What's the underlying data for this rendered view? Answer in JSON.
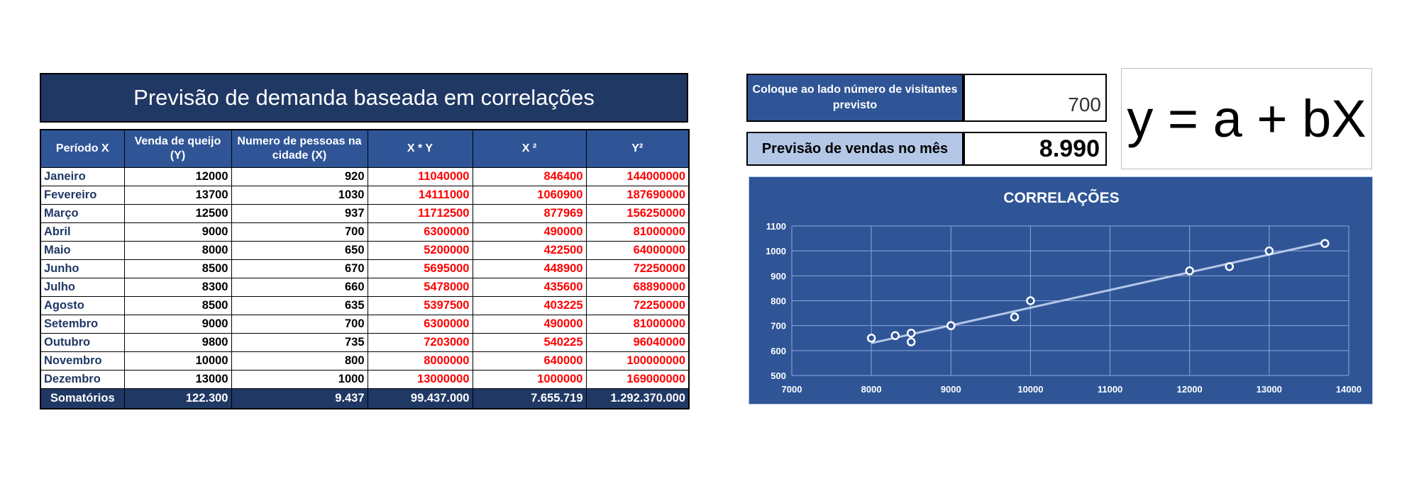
{
  "table": {
    "title": "Previsão de demanda baseada em correlações",
    "headers": [
      "Período X",
      "Venda de queijo (Y)",
      "Numero de pessoas na cidade (X)",
      "X * Y",
      "X ²",
      "Y²"
    ],
    "rows": [
      [
        "Janeiro",
        "12000",
        "920",
        "11040000",
        "846400",
        "144000000"
      ],
      [
        "Fevereiro",
        "13700",
        "1030",
        "14111000",
        "1060900",
        "187690000"
      ],
      [
        "Março",
        "12500",
        "937",
        "11712500",
        "877969",
        "156250000"
      ],
      [
        "Abril",
        "9000",
        "700",
        "6300000",
        "490000",
        "81000000"
      ],
      [
        "Maio",
        "8000",
        "650",
        "5200000",
        "422500",
        "64000000"
      ],
      [
        "Junho",
        "8500",
        "670",
        "5695000",
        "448900",
        "72250000"
      ],
      [
        "Julho",
        "8300",
        "660",
        "5478000",
        "435600",
        "68890000"
      ],
      [
        "Agosto",
        "8500",
        "635",
        "5397500",
        "403225",
        "72250000"
      ],
      [
        "Setembro",
        "9000",
        "700",
        "6300000",
        "490000",
        "81000000"
      ],
      [
        "Outubro",
        "9800",
        "735",
        "7203000",
        "540225",
        "96040000"
      ],
      [
        "Novembro",
        "10000",
        "800",
        "8000000",
        "640000",
        "100000000"
      ],
      [
        "Dezembro",
        "13000",
        "1000",
        "13000000",
        "1000000",
        "169000000"
      ]
    ],
    "totals": [
      "Somatórios",
      "122.300",
      "9.437",
      "99.437.000",
      "7.655.719",
      "1.292.370.000"
    ]
  },
  "input_panel": {
    "label": "Coloque ao lado número de visitantes previsto",
    "value": "700"
  },
  "output_panel": {
    "label": "Previsão de vendas no mês",
    "value": "8.990"
  },
  "formula": "y = a + bX",
  "chart_data": {
    "type": "scatter",
    "title": "CORRELAÇÕES",
    "xlim": [
      7000,
      14000
    ],
    "ylim": [
      500,
      1100
    ],
    "x_ticks": [
      "7000",
      "8000",
      "9000",
      "10000",
      "11000",
      "12000",
      "13000",
      "14000"
    ],
    "y_ticks": [
      "500",
      "600",
      "700",
      "800",
      "900",
      "1000",
      "1100"
    ],
    "grid": true,
    "points": [
      [
        12000,
        920
      ],
      [
        13700,
        1030
      ],
      [
        12500,
        937
      ],
      [
        9000,
        700
      ],
      [
        8000,
        650
      ],
      [
        8500,
        670
      ],
      [
        8300,
        660
      ],
      [
        8500,
        635
      ],
      [
        9000,
        700
      ],
      [
        9800,
        735
      ],
      [
        10000,
        800
      ],
      [
        13000,
        1000
      ]
    ],
    "trendline": [
      [
        8000,
        630
      ],
      [
        13700,
        1035
      ]
    ],
    "colors": {
      "background": "#2f5597",
      "marker": "#ffffff",
      "grid": "#8ea9db",
      "trendline": "#b4c7e7"
    }
  }
}
